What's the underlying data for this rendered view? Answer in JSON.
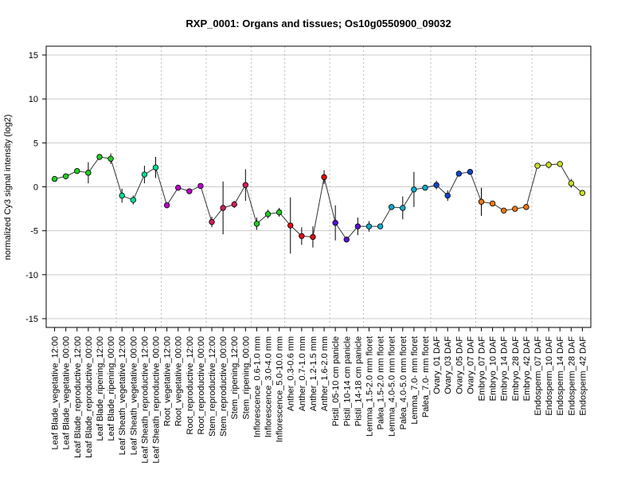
{
  "chart_data": {
    "type": "line",
    "title": "RXP_0001: Organs and tissues; Os10g0550900_09032",
    "xlabel": "",
    "ylabel": "normalized Cy3 signal intensity (log2)",
    "ylim": [
      -16,
      16
    ],
    "yticks": [
      -15,
      -10,
      -5,
      0,
      5,
      10,
      15
    ],
    "grid": true,
    "categories": [
      "Leaf Blade_vegetative_12:00",
      "Leaf Blade_vegetative_00:00",
      "Leaf Blade_reproductive_12:00",
      "Leaf Blade_reproductive_00:00",
      "Leaf Blade_ripening_12:00",
      "Leaf Blade_ripening_00:00",
      "Leaf Sheath_vegetative_12:00",
      "Leaf Sheath_vegetative_00:00",
      "Leaf Sheath_reproductive_12:00",
      "Leaf Sheath_reproductive_00:00",
      "Root_vegetative_12:00",
      "Root_vegetative_00:00",
      "Root_reproductive_12:00",
      "Root_reproductive_00:00",
      "Stem_reproductive_12:00",
      "Stem_reproductive_00:00",
      "Stem_ripening_12:00",
      "Stem_ripening_00:00",
      "Inflorescence_0.6-1.0 mm",
      "Inflorescence_3.0-4.0 mm",
      "Inflorescence_5.0-10.0 mm",
      "Anther_0.3-0.6 mm",
      "Anther_0.7-1.0 mm",
      "Anther_1.2-1.5 mm",
      "Anther_1.6-2.0 mm",
      "Pistil_05-10 cm panicle",
      "Pistil_10-14 cm panicle",
      "Pistil_14-18 cm panicle",
      "Lemma_1.5-2.0 mm floret",
      "Palea_1.5-2.0 mm floret",
      "Lemma_4.0-5.0 mm floret",
      "Palea_4.0-5.0 mm floret",
      "Lemma_7.0- mm floret",
      "Palea_7.0- mm floret",
      "Ovary_01 DAF",
      "Ovary_03 DAF",
      "Ovary_05 DAF",
      "Ovary_07 DAF",
      "Embryo_07 DAF",
      "Embryo_10 DAF",
      "Embryo_14 DAF",
      "Embryo_28 DAF",
      "Embryo_42 DAF",
      "Endosperm_07 DAF",
      "Endosperm_10 DAF",
      "Endosperm_14 DAF",
      "Endosperm_28 DAF",
      "Endosperm_42 DAF"
    ],
    "values": [
      0.9,
      1.2,
      1.8,
      1.6,
      3.4,
      3.2,
      -1.0,
      -1.5,
      1.4,
      2.2,
      -2.1,
      -0.1,
      -0.5,
      0.1,
      -4.0,
      -2.4,
      -2.0,
      0.2,
      -4.2,
      -3.1,
      -2.9,
      -4.4,
      -5.6,
      -5.7,
      1.1,
      -4.1,
      -6.0,
      -4.5,
      -4.5,
      -4.5,
      -2.3,
      -2.4,
      -0.3,
      -0.1,
      0.2,
      -1.0,
      1.5,
      1.7,
      -1.7,
      -1.9,
      -2.7,
      -2.5,
      -2.3,
      2.4,
      2.5,
      2.6,
      0.4,
      -0.7
    ],
    "errors": [
      0.15,
      0.15,
      0.2,
      1.2,
      0.15,
      0.6,
      0.8,
      0.5,
      1.0,
      1.2,
      0.2,
      0.1,
      0.15,
      0.2,
      0.6,
      3.0,
      0.4,
      1.8,
      0.7,
      0.5,
      0.5,
      3.2,
      1.0,
      1.2,
      0.8,
      2.0,
      0.3,
      1.0,
      0.6,
      0.3,
      0.2,
      1.3,
      2.0,
      0.2,
      0.5,
      0.6,
      0.3,
      0.2,
      1.6,
      0.2,
      0.2,
      0.2,
      0.2,
      0.3,
      0.4,
      0.3,
      0.5,
      0.3
    ],
    "group_boundaries_after_index": [
      5,
      9,
      13,
      17,
      20,
      24,
      27,
      33,
      37,
      42
    ],
    "colors": [
      "#22cc22",
      "#22cc22",
      "#22cc22",
      "#22cc22",
      "#22cc22",
      "#22cc22",
      "#00dd99",
      "#00dd99",
      "#00dd99",
      "#00dd99",
      "#bb00cc",
      "#bb00cc",
      "#bb00cc",
      "#bb00cc",
      "#cc2255",
      "#cc2255",
      "#cc2255",
      "#cc2255",
      "#22cc22",
      "#22cc22",
      "#22cc22",
      "#dd1111",
      "#dd1111",
      "#dd1111",
      "#dd1111",
      "#5511cc",
      "#5511cc",
      "#5511cc",
      "#11aacc",
      "#11aacc",
      "#11aacc",
      "#11aacc",
      "#11aacc",
      "#11aacc",
      "#1144cc",
      "#1144cc",
      "#1144cc",
      "#1144cc",
      "#ee7711",
      "#ee7711",
      "#ee7711",
      "#ee7711",
      "#ee7711",
      "#ccdd22",
      "#ccdd22",
      "#ccdd22",
      "#ccdd22",
      "#ccdd22"
    ]
  }
}
